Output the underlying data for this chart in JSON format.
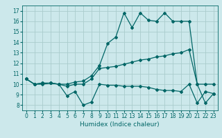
{
  "title": "",
  "xlabel": "Humidex (Indice chaleur)",
  "bg_color": "#cce8eb",
  "grid_color": "#aacccc",
  "line_color": "#006666",
  "xlim": [
    -0.5,
    23.5
  ],
  "ylim": [
    7.5,
    17.5
  ],
  "xticks": [
    0,
    1,
    2,
    3,
    4,
    5,
    6,
    7,
    8,
    9,
    10,
    11,
    12,
    13,
    14,
    15,
    16,
    17,
    18,
    19,
    20,
    21,
    22,
    23
  ],
  "yticks": [
    8,
    9,
    10,
    11,
    12,
    13,
    14,
    15,
    16,
    17
  ],
  "line1_x": [
    0,
    1,
    2,
    3,
    4,
    5,
    6,
    7,
    8,
    9,
    10,
    11,
    12,
    13,
    14,
    15,
    16,
    17,
    18,
    19,
    20,
    21,
    22,
    23
  ],
  "line1_y": [
    10.5,
    10.0,
    10.0,
    10.1,
    10.0,
    8.9,
    9.3,
    8.0,
    8.3,
    10.0,
    9.9,
    9.9,
    9.8,
    9.8,
    9.8,
    9.7,
    9.5,
    9.4,
    9.4,
    9.3,
    10.0,
    8.2,
    9.3,
    9.1
  ],
  "line2_x": [
    0,
    1,
    2,
    3,
    4,
    5,
    6,
    7,
    8,
    9,
    10,
    11,
    12,
    13,
    14,
    15,
    16,
    17,
    18,
    19,
    20,
    21,
    22,
    23
  ],
  "line2_y": [
    10.5,
    10.0,
    10.1,
    10.1,
    10.0,
    9.8,
    10.0,
    10.0,
    10.5,
    11.5,
    11.6,
    11.7,
    11.9,
    12.1,
    12.3,
    12.4,
    12.6,
    12.7,
    12.9,
    13.0,
    13.3,
    10.0,
    10.0,
    10.0
  ],
  "line3_x": [
    0,
    1,
    2,
    3,
    4,
    5,
    6,
    7,
    8,
    9,
    10,
    11,
    12,
    13,
    14,
    15,
    16,
    17,
    18,
    19,
    20,
    21,
    22,
    23
  ],
  "line3_y": [
    10.5,
    10.0,
    10.1,
    10.1,
    10.0,
    10.0,
    10.2,
    10.3,
    10.8,
    11.8,
    13.9,
    14.5,
    16.8,
    15.4,
    16.8,
    16.1,
    16.0,
    16.8,
    16.0,
    16.0,
    16.0,
    10.0,
    8.2,
    9.1
  ],
  "lw": 0.9,
  "ms": 2.0,
  "tick_fontsize": 5.5,
  "xlabel_fontsize": 6.5
}
